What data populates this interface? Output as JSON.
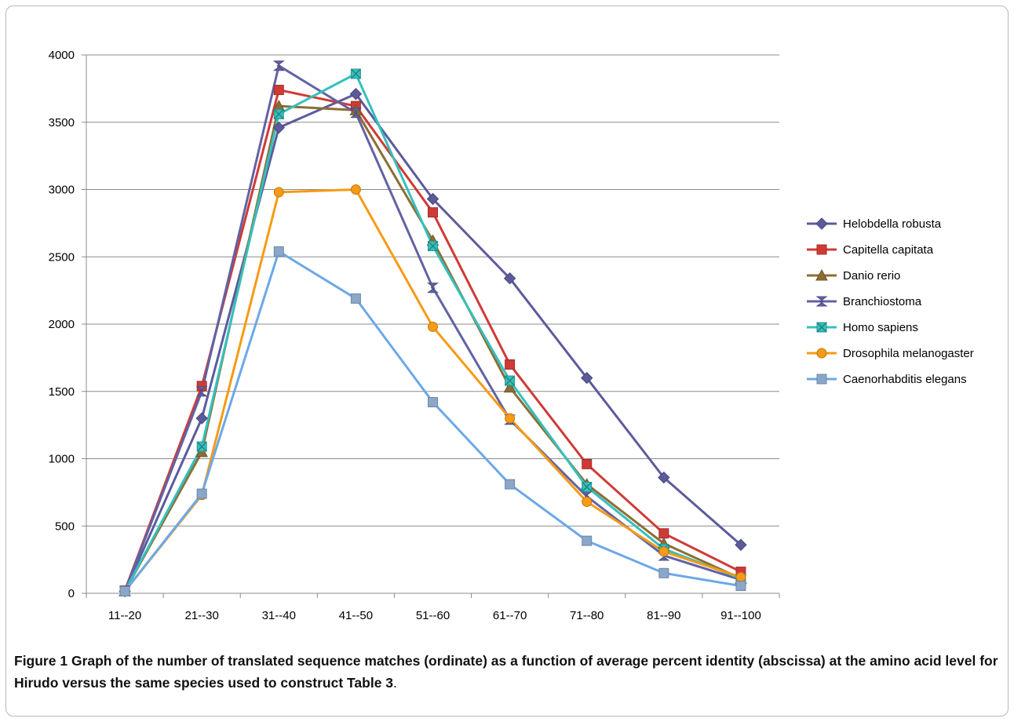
{
  "caption": {
    "label": "Figure 1",
    "text_bold": "Graph of the number of translated sequence matches (ordinate) as a function of average percent identity (abscissa) at the amino acid level for Hirudo versus the same species used to construct Table 3",
    "text_end": "."
  },
  "chart_data": {
    "type": "line",
    "categories": [
      "11--20",
      "21--30",
      "31--40",
      "41--50",
      "51--60",
      "61--70",
      "71--80",
      "81--90",
      "91--100"
    ],
    "ylim": [
      0,
      4000
    ],
    "yticks": [
      0,
      500,
      1000,
      1500,
      2000,
      2500,
      3000,
      3500,
      4000
    ],
    "grid": true,
    "legend_position": "right",
    "xlabel": "",
    "ylabel": "",
    "series": [
      {
        "name": "Helobdella robusta",
        "color": "#5b5b9c",
        "marker": "diamond",
        "values": [
          15,
          1300,
          3460,
          3710,
          2930,
          2340,
          1600,
          860,
          360
        ]
      },
      {
        "name": "Capitella capitata",
        "color": "#d03a36",
        "marker": "square",
        "values": [
          20,
          1540,
          3740,
          3620,
          2830,
          1700,
          960,
          445,
          160
        ]
      },
      {
        "name": "Danio rerio",
        "color": "#8c6e34",
        "marker": "triangle",
        "values": [
          15,
          1050,
          3620,
          3590,
          2620,
          1530,
          810,
          370,
          110
        ]
      },
      {
        "name": "Branchiostoma",
        "color": "#6262a4",
        "marker": "hourglass",
        "values": [
          15,
          1500,
          3920,
          3570,
          2270,
          1290,
          720,
          280,
          100
        ]
      },
      {
        "name": "Homo sapiens",
        "color": "#35c0bd",
        "marker": "star",
        "values": [
          15,
          1090,
          3560,
          3860,
          2580,
          1580,
          790,
          330,
          110
        ]
      },
      {
        "name": "Drosophila melanogaster",
        "color": "#f79a14",
        "marker": "circle",
        "values": [
          15,
          730,
          2980,
          3000,
          1980,
          1300,
          680,
          310,
          120
        ]
      },
      {
        "name": "Caenorhabditis elegans",
        "color": "#6ca8e8",
        "marker": "square-grey",
        "values": [
          15,
          740,
          2540,
          2190,
          1420,
          810,
          390,
          150,
          55
        ]
      }
    ]
  }
}
